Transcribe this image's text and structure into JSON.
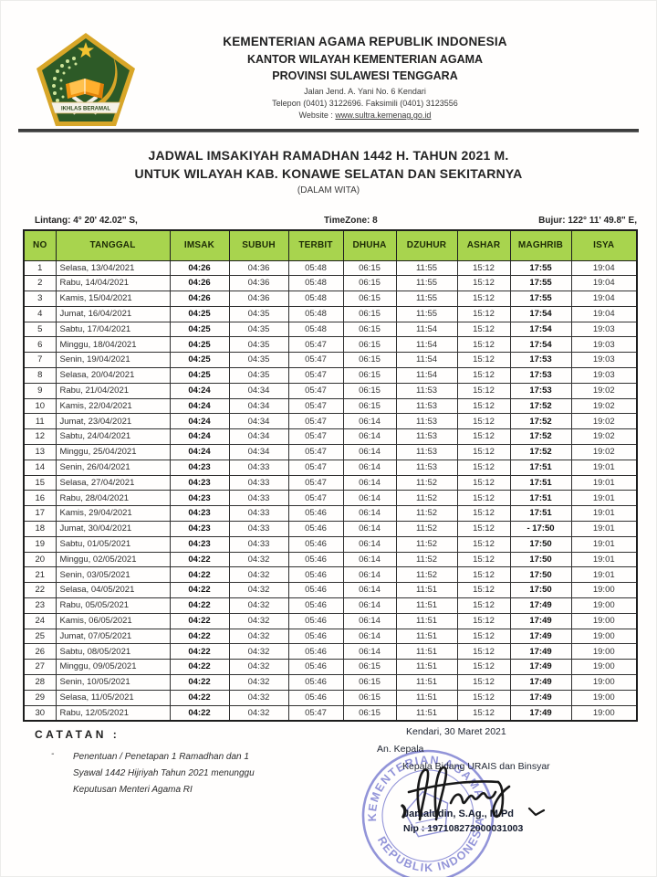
{
  "letterhead": {
    "line1": "KEMENTERIAN AGAMA REPUBLIK INDONESIA",
    "line2": "KANTOR WILAYAH KEMENTERIAN AGAMA",
    "line3": "PROVINSI SULAWESI TENGGARA",
    "address": "Jalan Jend. A. Yani No. 6 Kendari",
    "phone": "Telepon (0401) 3122696. Faksimili (0401) 3123556",
    "website_label": "Website : ",
    "website_url": "www.sultra.kemenag.go.id",
    "logo_banner": "IKHLAS BERAMAL"
  },
  "title": {
    "line1": "JADWAL IMSAKIYAH RAMADHAN 1442 H. TAHUN 2021 M.",
    "line2": "UNTUK WILAYAH KAB. KONAWE SELATAN DAN SEKITARNYA",
    "line3": "(DALAM WITA)"
  },
  "coords": {
    "lintang": "Lintang: 4° 20' 42.02\" S,",
    "timezone": "TimeZone: 8",
    "bujur": "Bujur: 122° 11' 49.8\" E,"
  },
  "table": {
    "headers": [
      "NO",
      "TANGGAL",
      "IMSAK",
      "SUBUH",
      "TERBIT",
      "DHUHA",
      "DZUHUR",
      "ASHAR",
      "MAGHRIB",
      "ISYA"
    ],
    "rows": [
      [
        "1",
        "Selasa, 13/04/2021",
        "04:26",
        "04:36",
        "05:48",
        "06:15",
        "11:55",
        "15:12",
        "17:55",
        "19:04"
      ],
      [
        "2",
        "Rabu, 14/04/2021",
        "04:26",
        "04:36",
        "05:48",
        "06:15",
        "11:55",
        "15:12",
        "17:55",
        "19:04"
      ],
      [
        "3",
        "Kamis, 15/04/2021",
        "04:26",
        "04:36",
        "05:48",
        "06:15",
        "11:55",
        "15:12",
        "17:55",
        "19:04"
      ],
      [
        "4",
        "Jumat, 16/04/2021",
        "04:25",
        "04:35",
        "05:48",
        "06:15",
        "11:55",
        "15:12",
        "17:54",
        "19:04"
      ],
      [
        "5",
        "Sabtu, 17/04/2021",
        "04:25",
        "04:35",
        "05:48",
        "06:15",
        "11:54",
        "15:12",
        "17:54",
        "19:03"
      ],
      [
        "6",
        "Minggu, 18/04/2021",
        "04:25",
        "04:35",
        "05:47",
        "06:15",
        "11:54",
        "15:12",
        "17:54",
        "19:03"
      ],
      [
        "7",
        "Senin, 19/04/2021",
        "04:25",
        "04:35",
        "05:47",
        "06:15",
        "11:54",
        "15:12",
        "17:53",
        "19:03"
      ],
      [
        "8",
        "Selasa, 20/04/2021",
        "04:25",
        "04:35",
        "05:47",
        "06:15",
        "11:54",
        "15:12",
        "17:53",
        "19:03"
      ],
      [
        "9",
        "Rabu, 21/04/2021",
        "04:24",
        "04:34",
        "05:47",
        "06:15",
        "11:53",
        "15:12",
        "17:53",
        "19:02"
      ],
      [
        "10",
        "Kamis, 22/04/2021",
        "04:24",
        "04:34",
        "05:47",
        "06:15",
        "11:53",
        "15:12",
        "17:52",
        "19:02"
      ],
      [
        "11",
        "Jumat, 23/04/2021",
        "04:24",
        "04:34",
        "05:47",
        "06:14",
        "11:53",
        "15:12",
        "17:52",
        "19:02"
      ],
      [
        "12",
        "Sabtu, 24/04/2021",
        "04:24",
        "04:34",
        "05:47",
        "06:14",
        "11:53",
        "15:12",
        "17:52",
        "19:02"
      ],
      [
        "13",
        "Minggu, 25/04/2021",
        "04:24",
        "04:34",
        "05:47",
        "06:14",
        "11:53",
        "15:12",
        "17:52",
        "19:02"
      ],
      [
        "14",
        "Senin, 26/04/2021",
        "04:23",
        "04:33",
        "05:47",
        "06:14",
        "11:53",
        "15:12",
        "17:51",
        "19:01"
      ],
      [
        "15",
        "Selasa, 27/04/2021",
        "04:23",
        "04:33",
        "05:47",
        "06:14",
        "11:52",
        "15:12",
        "17:51",
        "19:01"
      ],
      [
        "16",
        "Rabu, 28/04/2021",
        "04:23",
        "04:33",
        "05:47",
        "06:14",
        "11:52",
        "15:12",
        "17:51",
        "19:01"
      ],
      [
        "17",
        "Kamis, 29/04/2021",
        "04:23",
        "04:33",
        "05:46",
        "06:14",
        "11:52",
        "15:12",
        "17:51",
        "19:01"
      ],
      [
        "18",
        "Jumat, 30/04/2021",
        "04:23",
        "04:33",
        "05:46",
        "06:14",
        "11:52",
        "15:12",
        "- 17:50",
        "19:01"
      ],
      [
        "19",
        "Sabtu, 01/05/2021",
        "04:23",
        "04:33",
        "05:46",
        "06:14",
        "11:52",
        "15:12",
        "17:50",
        "19:01"
      ],
      [
        "20",
        "Minggu, 02/05/2021",
        "04:22",
        "04:32",
        "05:46",
        "06:14",
        "11:52",
        "15:12",
        "17:50",
        "19:01"
      ],
      [
        "21",
        "Senin, 03/05/2021",
        "04:22",
        "04:32",
        "05:46",
        "06:14",
        "11:52",
        "15:12",
        "17:50",
        "19:01"
      ],
      [
        "22",
        "Selasa, 04/05/2021",
        "04:22",
        "04:32",
        "05:46",
        "06:14",
        "11:51",
        "15:12",
        "17:50",
        "19:00"
      ],
      [
        "23",
        "Rabu, 05/05/2021",
        "04:22",
        "04:32",
        "05:46",
        "06:14",
        "11:51",
        "15:12",
        "17:49",
        "19:00"
      ],
      [
        "24",
        "Kamis, 06/05/2021",
        "04:22",
        "04:32",
        "05:46",
        "06:14",
        "11:51",
        "15:12",
        "17:49",
        "19:00"
      ],
      [
        "25",
        "Jumat, 07/05/2021",
        "04:22",
        "04:32",
        "05:46",
        "06:14",
        "11:51",
        "15:12",
        "17:49",
        "19:00"
      ],
      [
        "26",
        "Sabtu, 08/05/2021",
        "04:22",
        "04:32",
        "05:46",
        "06:14",
        "11:51",
        "15:12",
        "17:49",
        "19:00"
      ],
      [
        "27",
        "Minggu, 09/05/2021",
        "04:22",
        "04:32",
        "05:46",
        "06:15",
        "11:51",
        "15:12",
        "17:49",
        "19:00"
      ],
      [
        "28",
        "Senin, 10/05/2021",
        "04:22",
        "04:32",
        "05:46",
        "06:15",
        "11:51",
        "15:12",
        "17:49",
        "19:00"
      ],
      [
        "29",
        "Selasa, 11/05/2021",
        "04:22",
        "04:32",
        "05:46",
        "06:15",
        "11:51",
        "15:12",
        "17:49",
        "19:00"
      ],
      [
        "30",
        "Rabu, 12/05/2021",
        "04:22",
        "04:32",
        "05:47",
        "06:15",
        "11:51",
        "15:12",
        "17:49",
        "19:00"
      ]
    ]
  },
  "notes": {
    "heading": "CATATAN :",
    "bullet": "-",
    "lines": [
      "Penentuan / Penetapan 1 Ramadhan dan 1",
      "Syawal 1442 Hijriyah Tahun 2021 menunggu",
      "Keputusan Menteri Agama RI"
    ]
  },
  "signature": {
    "place_date": "Kendari, 30 Maret 2021",
    "an": "An. Kepala",
    "position": "Kepala Bidang URAIS dan Binsyar",
    "name": "Jamaludin, S.Ag., M.Pd",
    "nip": "Nip : 197108272000031003",
    "stamp_top": "KEMENTERIAN AGAMA",
    "stamp_bottom": "REPUBLIK INDONESIA"
  },
  "colors": {
    "table_header_green": "#a8d44e",
    "logo_green": "#2d5a27",
    "logo_gold": "#d8a628",
    "stamp_blue": "#4b4ec1",
    "rule_dark": "#3d3d3d"
  }
}
